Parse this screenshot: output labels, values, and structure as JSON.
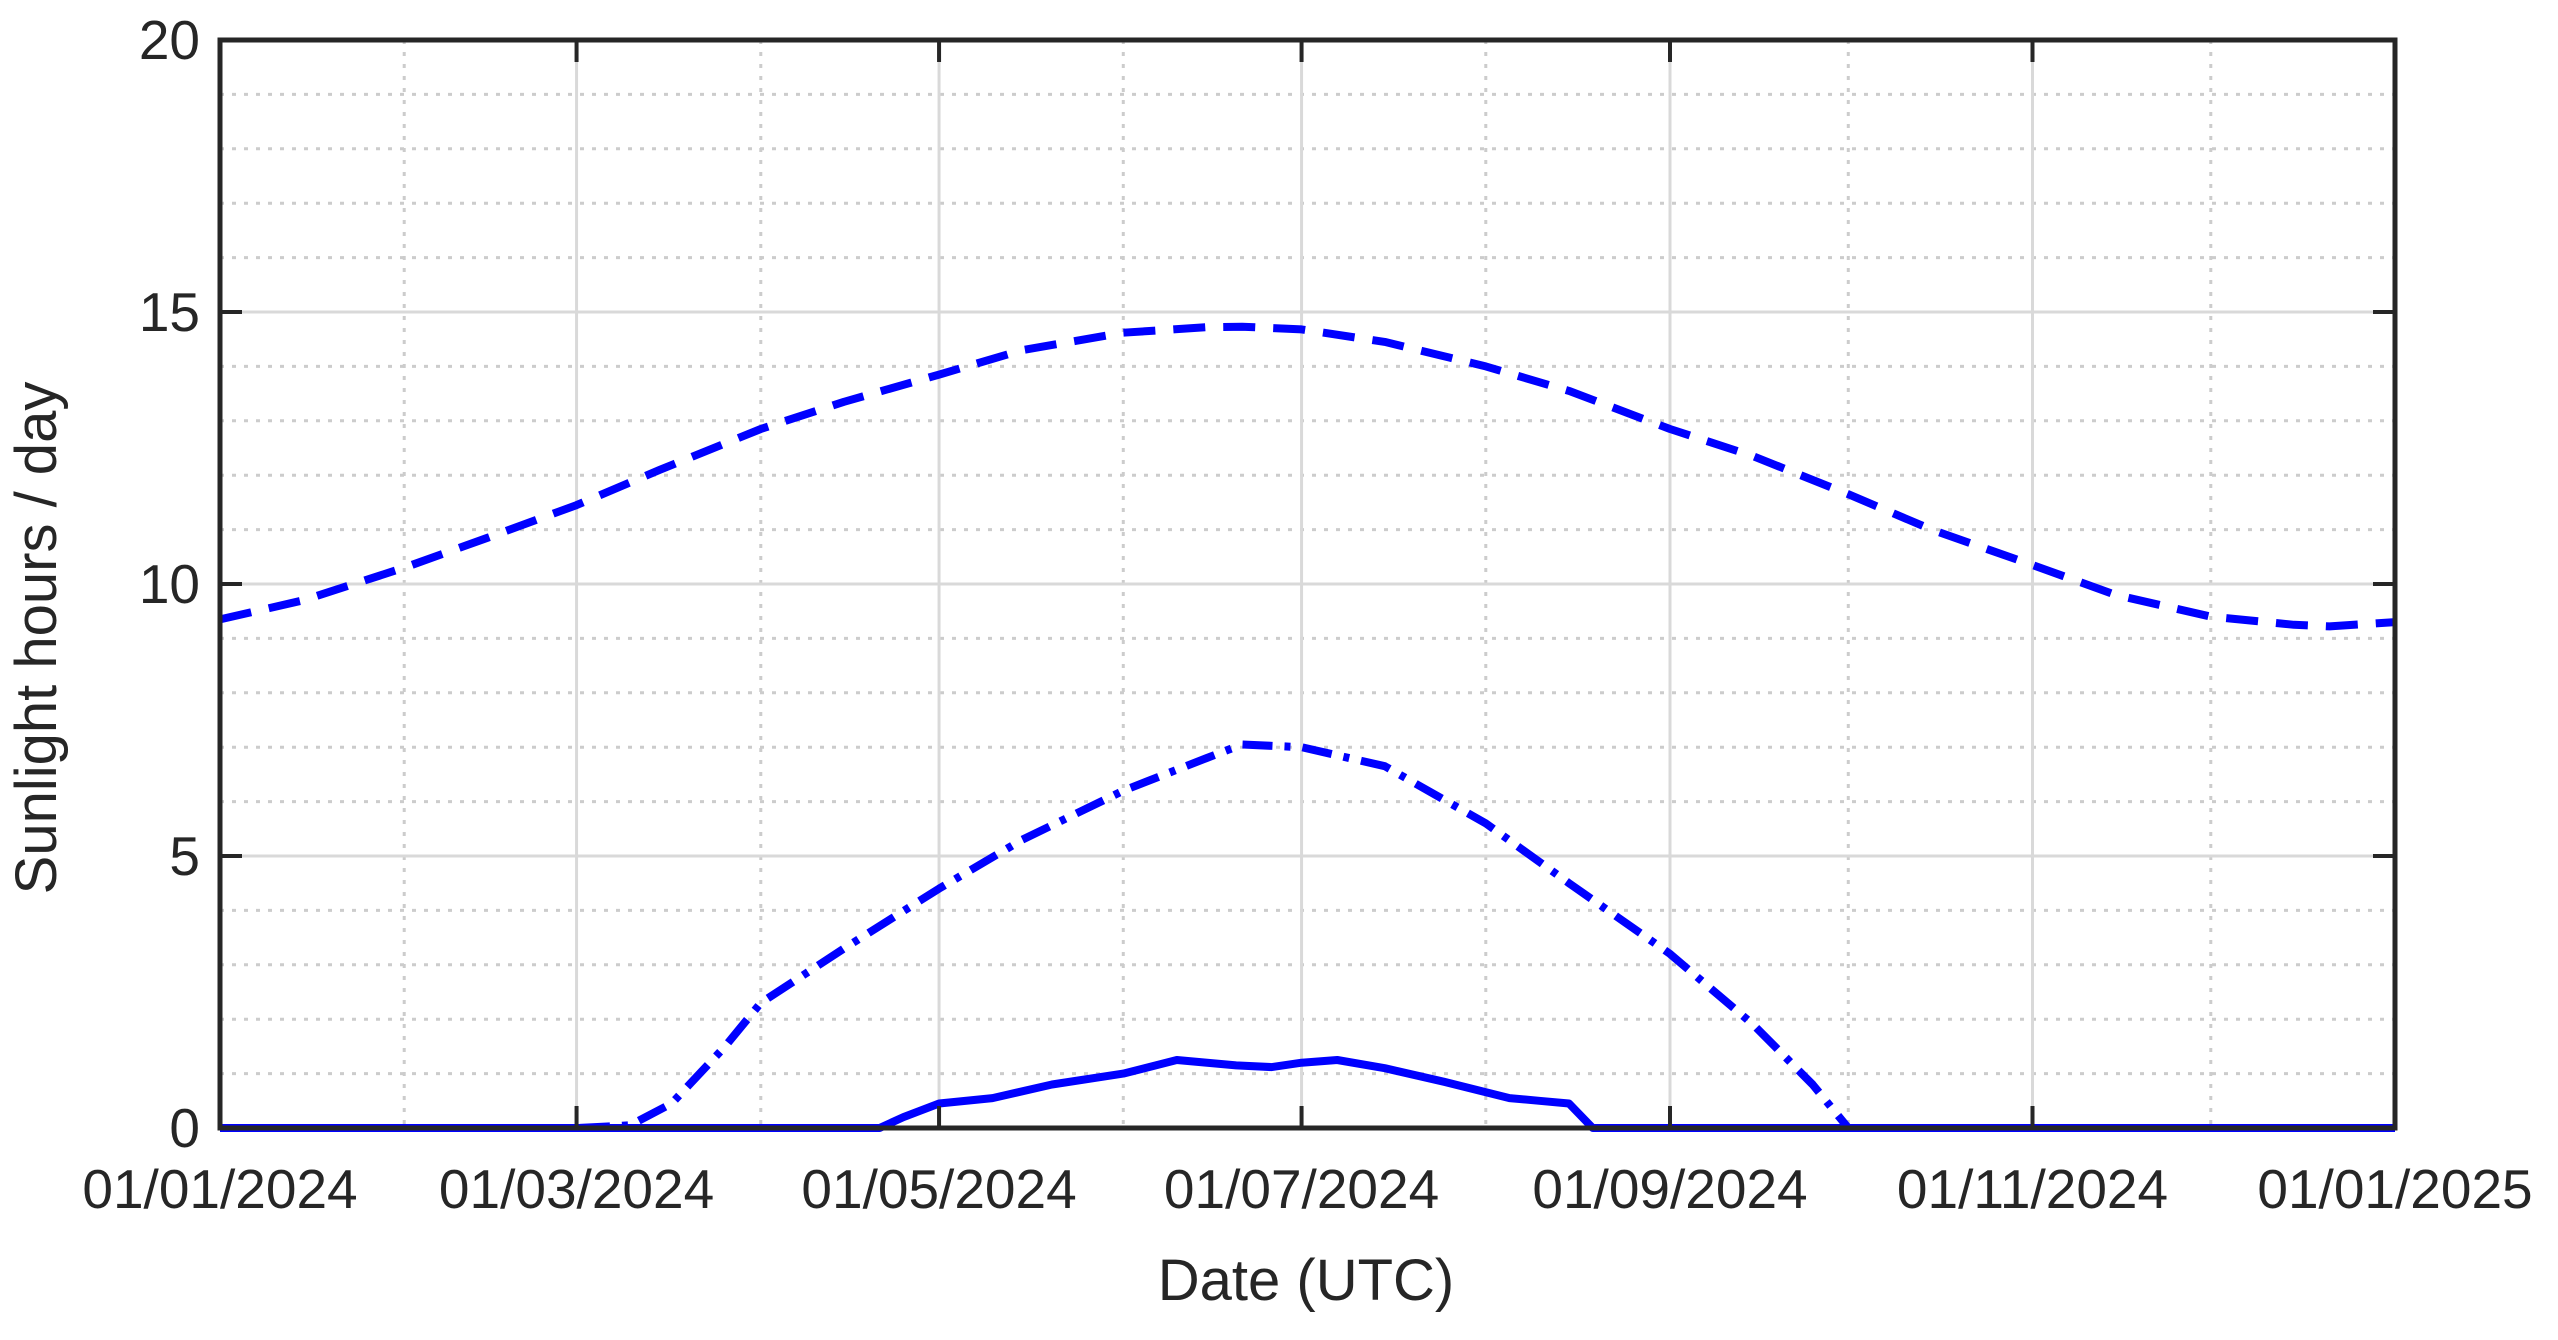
{
  "chart_data": {
    "type": "line",
    "title": "",
    "xlabel": "Date (UTC)",
    "ylabel": "Sunlight hours / day",
    "xlim": [
      "2024-01-01",
      "2025-01-01"
    ],
    "ylim": [
      0,
      20
    ],
    "x_ticks": [
      "2024-01-01",
      "2024-03-01",
      "2024-05-01",
      "2024-07-01",
      "2024-09-01",
      "2024-11-01",
      "2025-01-01"
    ],
    "x_tick_labels": [
      "01/01/2024",
      "01/03/2024",
      "01/05/2024",
      "01/07/2024",
      "01/09/2024",
      "01/11/2024",
      "01/01/2025"
    ],
    "y_ticks": [
      0,
      5,
      10,
      15,
      20
    ],
    "y_tick_labels": [
      "0",
      "5",
      "10",
      "15",
      "20"
    ],
    "grid": "on",
    "minor_grid": "on",
    "box": "on",
    "legend": "none",
    "colors": {
      "series": "#0000ff",
      "axis": "#262626",
      "major_grid": "#d9d9d9",
      "minor_grid": "#cccccc"
    },
    "series": [
      {
        "style": "dashed",
        "x": [
          "2024-01-01",
          "2024-01-15",
          "2024-02-01",
          "2024-02-15",
          "2024-03-01",
          "2024-03-15",
          "2024-04-01",
          "2024-04-15",
          "2024-05-01",
          "2024-05-15",
          "2024-06-01",
          "2024-06-15",
          "2024-06-21",
          "2024-07-01",
          "2024-07-15",
          "2024-08-01",
          "2024-08-15",
          "2024-09-01",
          "2024-09-15",
          "2024-10-01",
          "2024-10-15",
          "2024-11-01",
          "2024-11-15",
          "2024-12-01",
          "2024-12-15",
          "2024-12-21",
          "2025-01-01"
        ],
        "values": [
          9.35,
          9.7,
          10.3,
          10.85,
          11.45,
          12.1,
          12.85,
          13.35,
          13.85,
          14.3,
          14.62,
          14.72,
          14.73,
          14.68,
          14.45,
          14.0,
          13.55,
          12.85,
          12.35,
          11.65,
          11.0,
          10.35,
          9.8,
          9.4,
          9.25,
          9.22,
          9.3
        ]
      },
      {
        "style": "dash-dot",
        "x": [
          "2024-01-01",
          "2024-03-01",
          "2024-03-10",
          "2024-03-17",
          "2024-03-26",
          "2024-04-01",
          "2024-04-15",
          "2024-05-01",
          "2024-05-15",
          "2024-06-01",
          "2024-06-15",
          "2024-06-21",
          "2024-07-01",
          "2024-07-15",
          "2024-08-01",
          "2024-08-15",
          "2024-09-01",
          "2024-09-15",
          "2024-09-25",
          "2024-10-01",
          "2025-01-01"
        ],
        "values": [
          0,
          0,
          0.05,
          0.45,
          1.5,
          2.3,
          3.3,
          4.4,
          5.3,
          6.2,
          6.8,
          7.05,
          7.0,
          6.65,
          5.6,
          4.5,
          3.2,
          1.9,
          0.8,
          0,
          0
        ]
      },
      {
        "style": "solid",
        "x": [
          "2024-01-01",
          "2024-04-21",
          "2024-04-25",
          "2024-05-01",
          "2024-05-10",
          "2024-05-20",
          "2024-06-01",
          "2024-06-10",
          "2024-06-20",
          "2024-06-26",
          "2024-07-01",
          "2024-07-07",
          "2024-07-15",
          "2024-07-25",
          "2024-08-05",
          "2024-08-10",
          "2024-08-15",
          "2024-08-19",
          "2025-01-01"
        ],
        "values": [
          0,
          0,
          0.2,
          0.45,
          0.55,
          0.8,
          1.0,
          1.25,
          1.15,
          1.12,
          1.2,
          1.25,
          1.1,
          0.85,
          0.55,
          0.5,
          0.45,
          0,
          0
        ]
      }
    ]
  }
}
